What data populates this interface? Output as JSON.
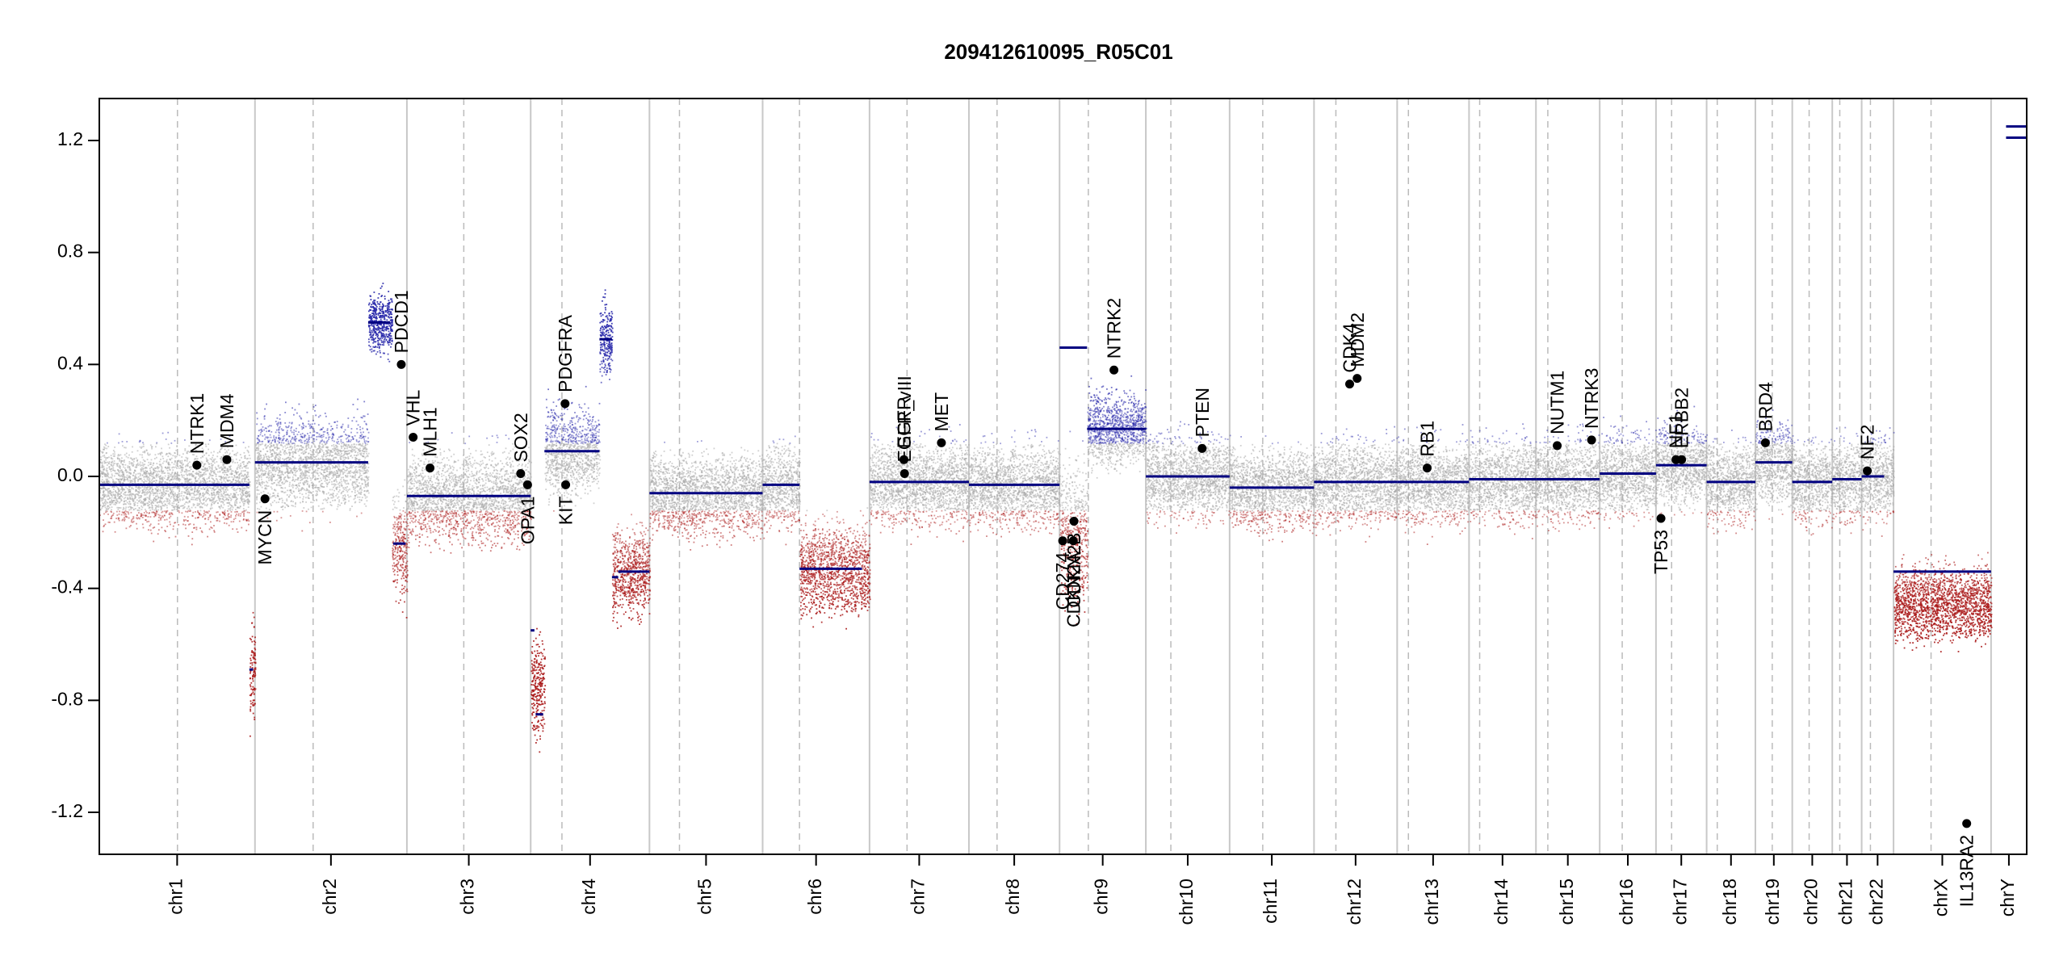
{
  "chart_data": {
    "type": "scatter",
    "title": "209412610095_R05C01",
    "xlabel": "",
    "ylabel": "",
    "ylim": [
      -1.35,
      1.35
    ],
    "yticks": [
      -1.2,
      -0.8,
      -0.4,
      0.0,
      0.4,
      0.8,
      1.2
    ],
    "ytick_labels": [
      "-1.2",
      "-0.8",
      "-0.4",
      "0.0",
      "0.4",
      "0.8",
      "1.2"
    ],
    "grid": false,
    "legend": "none",
    "colors": {
      "gain": "#3b3bb3",
      "neutral": "#b8b8b8",
      "loss": "#b22222",
      "segment": "#000080",
      "gene_point": "#000000",
      "chrom_border": "#c8c8c8",
      "centromere": "#bbbbbb"
    },
    "chromosomes": [
      {
        "name": "chr1",
        "label": "chr1",
        "start": 0,
        "end": 249,
        "centromere": 125
      },
      {
        "name": "chr2",
        "label": "chr2",
        "start": 249,
        "end": 492,
        "centromere": 342
      },
      {
        "name": "chr3",
        "label": "chr3",
        "start": 492,
        "end": 690,
        "centromere": 583
      },
      {
        "name": "chr4",
        "label": "chr4",
        "start": 690,
        "end": 880,
        "centromere": 740
      },
      {
        "name": "chr5",
        "label": "chr5",
        "start": 880,
        "end": 1061,
        "centromere": 928
      },
      {
        "name": "chr6",
        "label": "chr6",
        "start": 1061,
        "end": 1232,
        "centromere": 1120
      },
      {
        "name": "chr7",
        "label": "chr7",
        "start": 1232,
        "end": 1391,
        "centromere": 1292
      },
      {
        "name": "chr8",
        "label": "chr8",
        "start": 1391,
        "end": 1536,
        "centromere": 1436
      },
      {
        "name": "chr9",
        "label": "chr9",
        "start": 1536,
        "end": 1674,
        "centromere": 1582
      },
      {
        "name": "chr10",
        "label": "chr10",
        "start": 1674,
        "end": 1808,
        "centromere": 1714
      },
      {
        "name": "chr11",
        "label": "chr11",
        "start": 1808,
        "end": 1943,
        "centromere": 1861
      },
      {
        "name": "chr12",
        "label": "chr12",
        "start": 1943,
        "end": 2076,
        "centromere": 1978
      },
      {
        "name": "chr13",
        "label": "chr13",
        "start": 2076,
        "end": 2191,
        "centromere": 2094
      },
      {
        "name": "chr14",
        "label": "chr14",
        "start": 2191,
        "end": 2298,
        "centromere": 2208
      },
      {
        "name": "chr15",
        "label": "chr15",
        "start": 2298,
        "end": 2400,
        "centromere": 2317
      },
      {
        "name": "chr16",
        "label": "chr16",
        "start": 2400,
        "end": 2490,
        "centromere": 2436
      },
      {
        "name": "chr17",
        "label": "chr17",
        "start": 2490,
        "end": 2571,
        "centromere": 2515
      },
      {
        "name": "chr18",
        "label": "chr18",
        "start": 2571,
        "end": 2649,
        "centromere": 2588
      },
      {
        "name": "chr19",
        "label": "chr19",
        "start": 2649,
        "end": 2708,
        "centromere": 2676
      },
      {
        "name": "chr20",
        "label": "chr20",
        "start": 2708,
        "end": 2772,
        "centromere": 2735
      },
      {
        "name": "chr21",
        "label": "chr21",
        "start": 2772,
        "end": 2819,
        "centromere": 2784
      },
      {
        "name": "chr22",
        "label": "chr22",
        "start": 2819,
        "end": 2870,
        "centromere": 2833
      },
      {
        "name": "chrX",
        "label": "chrX",
        "start": 2870,
        "end": 3026,
        "centromere": 2930
      },
      {
        "name": "chrY",
        "label": "chrY",
        "start": 3026,
        "end": 3083,
        "centromere": null
      }
    ],
    "segments": [
      {
        "start": 0,
        "end": 240,
        "value": -0.03
      },
      {
        "start": 240,
        "end": 246,
        "value": -0.69
      },
      {
        "start": 249,
        "end": 430,
        "value": 0.05
      },
      {
        "start": 430,
        "end": 465,
        "value": 0.55
      },
      {
        "start": 470,
        "end": 490,
        "value": -0.24
      },
      {
        "start": 492,
        "end": 690,
        "value": -0.07
      },
      {
        "start": 690,
        "end": 696,
        "value": -0.55
      },
      {
        "start": 698,
        "end": 710,
        "value": -0.85
      },
      {
        "start": 712,
        "end": 800,
        "value": 0.09
      },
      {
        "start": 800,
        "end": 820,
        "value": 0.49
      },
      {
        "start": 820,
        "end": 830,
        "value": -0.36
      },
      {
        "start": 830,
        "end": 880,
        "value": -0.34
      },
      {
        "start": 880,
        "end": 1061,
        "value": -0.06
      },
      {
        "start": 1061,
        "end": 1120,
        "value": -0.03
      },
      {
        "start": 1120,
        "end": 1220,
        "value": -0.33
      },
      {
        "start": 1232,
        "end": 1391,
        "value": -0.02
      },
      {
        "start": 1391,
        "end": 1536,
        "value": -0.03
      },
      {
        "start": 1536,
        "end": 1580,
        "value": 0.46
      },
      {
        "start": 1580,
        "end": 1674,
        "value": 0.17
      },
      {
        "start": 1674,
        "end": 1808,
        "value": 0.0
      },
      {
        "start": 1808,
        "end": 1943,
        "value": -0.04
      },
      {
        "start": 1943,
        "end": 2076,
        "value": -0.02
      },
      {
        "start": 2076,
        "end": 2191,
        "value": -0.02
      },
      {
        "start": 2191,
        "end": 2298,
        "value": -0.01
      },
      {
        "start": 2298,
        "end": 2400,
        "value": -0.01
      },
      {
        "start": 2400,
        "end": 2490,
        "value": 0.01
      },
      {
        "start": 2490,
        "end": 2571,
        "value": 0.04
      },
      {
        "start": 2571,
        "end": 2649,
        "value": -0.02
      },
      {
        "start": 2649,
        "end": 2708,
        "value": 0.05
      },
      {
        "start": 2708,
        "end": 2772,
        "value": -0.02
      },
      {
        "start": 2772,
        "end": 2819,
        "value": -0.01
      },
      {
        "start": 2819,
        "end": 2855,
        "value": 0.0
      },
      {
        "start": 2870,
        "end": 3026,
        "value": -0.34
      },
      {
        "start": 3050,
        "end": 3083,
        "value": 1.25
      },
      {
        "start": 3050,
        "end": 3083,
        "value": 1.21
      }
    ],
    "probe_profile": [
      {
        "start": 0,
        "end": 240,
        "center": -0.03,
        "spread": 0.2
      },
      {
        "start": 240,
        "end": 249,
        "center": -0.69,
        "spread": 0.25
      },
      {
        "start": 249,
        "end": 430,
        "center": 0.05,
        "spread": 0.22
      },
      {
        "start": 430,
        "end": 468,
        "center": 0.55,
        "spread": 0.15
      },
      {
        "start": 468,
        "end": 492,
        "center": -0.24,
        "spread": 0.25
      },
      {
        "start": 492,
        "end": 690,
        "center": -0.07,
        "spread": 0.22
      },
      {
        "start": 690,
        "end": 712,
        "center": -0.75,
        "spread": 0.25
      },
      {
        "start": 712,
        "end": 800,
        "center": 0.09,
        "spread": 0.22
      },
      {
        "start": 800,
        "end": 820,
        "center": 0.49,
        "spread": 0.18
      },
      {
        "start": 820,
        "end": 880,
        "center": -0.34,
        "spread": 0.22
      },
      {
        "start": 880,
        "end": 1061,
        "center": -0.06,
        "spread": 0.2
      },
      {
        "start": 1061,
        "end": 1120,
        "center": -0.03,
        "spread": 0.2
      },
      {
        "start": 1120,
        "end": 1232,
        "center": -0.33,
        "spread": 0.22
      },
      {
        "start": 1232,
        "end": 1391,
        "center": -0.02,
        "spread": 0.2
      },
      {
        "start": 1391,
        "end": 1536,
        "center": -0.03,
        "spread": 0.2
      },
      {
        "start": 1536,
        "end": 1580,
        "center": -0.2,
        "spread": 0.35
      },
      {
        "start": 1580,
        "end": 1674,
        "center": 0.17,
        "spread": 0.18
      },
      {
        "start": 1674,
        "end": 1808,
        "center": 0.0,
        "spread": 0.2
      },
      {
        "start": 1808,
        "end": 1943,
        "center": -0.04,
        "spread": 0.2
      },
      {
        "start": 1943,
        "end": 2076,
        "center": -0.02,
        "spread": 0.2
      },
      {
        "start": 2076,
        "end": 2191,
        "center": -0.02,
        "spread": 0.2
      },
      {
        "start": 2191,
        "end": 2298,
        "center": -0.01,
        "spread": 0.2
      },
      {
        "start": 2298,
        "end": 2400,
        "center": -0.01,
        "spread": 0.2
      },
      {
        "start": 2400,
        "end": 2490,
        "center": 0.01,
        "spread": 0.2
      },
      {
        "start": 2490,
        "end": 2571,
        "center": 0.04,
        "spread": 0.2
      },
      {
        "start": 2571,
        "end": 2649,
        "center": -0.02,
        "spread": 0.2
      },
      {
        "start": 2649,
        "end": 2708,
        "center": 0.05,
        "spread": 0.2
      },
      {
        "start": 2708,
        "end": 2772,
        "center": -0.02,
        "spread": 0.2
      },
      {
        "start": 2772,
        "end": 2819,
        "center": -0.01,
        "spread": 0.2
      },
      {
        "start": 2819,
        "end": 2870,
        "center": 0.0,
        "spread": 0.2
      },
      {
        "start": 2870,
        "end": 3026,
        "center": -0.45,
        "spread": 0.18
      }
    ],
    "genes": [
      {
        "name": "NTRK1",
        "pos": 156,
        "value": 0.04
      },
      {
        "name": "MDM4",
        "pos": 204,
        "value": 0.06
      },
      {
        "name": "MYCN",
        "pos": 265,
        "value": -0.08
      },
      {
        "name": "PDCD1",
        "pos": 483,
        "value": 0.4
      },
      {
        "name": "VHL",
        "pos": 502,
        "value": 0.14
      },
      {
        "name": "MLH1",
        "pos": 529,
        "value": 0.03
      },
      {
        "name": "SOX2",
        "pos": 674,
        "value": 0.01
      },
      {
        "name": "OPA1",
        "pos": 685,
        "value": -0.03
      },
      {
        "name": "PDGFRA",
        "pos": 745,
        "value": 0.26
      },
      {
        "name": "KIT",
        "pos": 746,
        "value": -0.03
      },
      {
        "name": "EGFR",
        "pos": 1287,
        "value": 0.06
      },
      {
        "name": "EGFR_vIII",
        "pos": 1288,
        "value": 0.01
      },
      {
        "name": "MET",
        "pos": 1347,
        "value": 0.12
      },
      {
        "name": "CD274",
        "pos": 1541,
        "value": -0.23
      },
      {
        "name": "CDKN2A",
        "pos": 1558,
        "value": -0.23
      },
      {
        "name": "CDKN2B",
        "pos": 1559,
        "value": -0.16
      },
      {
        "name": "NTRK2",
        "pos": 1623,
        "value": 0.38
      },
      {
        "name": "PTEN",
        "pos": 1764,
        "value": 0.1
      },
      {
        "name": "CDK4",
        "pos": 2000,
        "value": 0.33
      },
      {
        "name": "MDM2",
        "pos": 2012,
        "value": 0.35
      },
      {
        "name": "RB1",
        "pos": 2124,
        "value": 0.03
      },
      {
        "name": "NUTM1",
        "pos": 2332,
        "value": 0.11
      },
      {
        "name": "NTRK3",
        "pos": 2387,
        "value": 0.13
      },
      {
        "name": "TP53",
        "pos": 2498,
        "value": -0.15
      },
      {
        "name": "NF1",
        "pos": 2522,
        "value": 0.06
      },
      {
        "name": "ERBB2",
        "pos": 2531,
        "value": 0.06
      },
      {
        "name": "BRD4",
        "pos": 2665,
        "value": 0.12
      },
      {
        "name": "NF2",
        "pos": 2828,
        "value": 0.02
      },
      {
        "name": "IL13RA2",
        "pos": 2987,
        "value": -1.24
      }
    ]
  }
}
